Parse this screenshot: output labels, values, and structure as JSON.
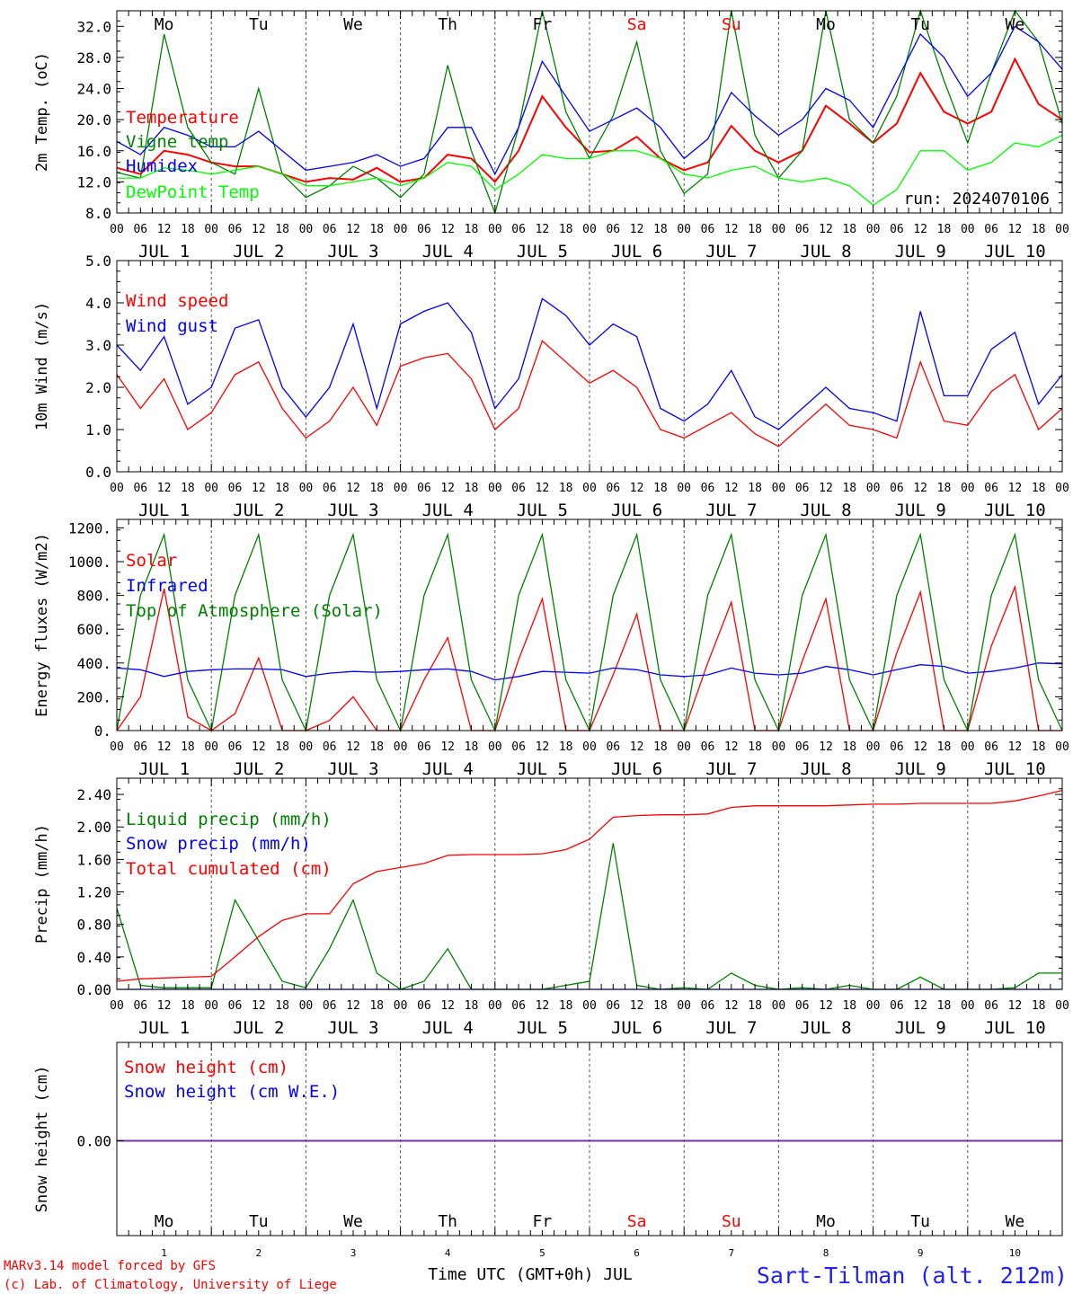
{
  "footer": {
    "credit_line1": "MARv3.14 model forced by GFS",
    "credit_line2": "(c) Lab. of Climatology, University of Liege",
    "xlabel": "Time UTC (GMT+0h) JUL",
    "station": "Sart-Tilman (alt. 212m)"
  },
  "days": {
    "weekday_labels": [
      "Mo",
      "Tu",
      "We",
      "Th",
      "Fr",
      "Sa",
      "Su",
      "Mo",
      "Tu",
      "We"
    ],
    "date_labels": [
      "JUL  1",
      "JUL  2",
      "JUL  3",
      "JUL  4",
      "JUL  5",
      "JUL  6",
      "JUL  7",
      "JUL  8",
      "JUL  9",
      "JUL 10"
    ],
    "day_numbers": [
      "1",
      "2",
      "3",
      "4",
      "5",
      "6",
      "7",
      "8",
      "9",
      "10"
    ],
    "hour_ticks": [
      "00",
      "06",
      "12",
      "18"
    ],
    "final_hour": "00",
    "weekend_color": "#ff0000",
    "weekday_color": "#000000"
  },
  "chart_data": [
    {
      "type": "line",
      "ylabel": "2m Temp. (oC)",
      "ylim": [
        8,
        34
      ],
      "ytick_labels": [
        "8.0",
        "12.0",
        "16.0",
        "20.0",
        "24.0",
        "28.0",
        "32.0"
      ],
      "annotation": "run: 2024070106",
      "x_hours": [
        0,
        6,
        12,
        18,
        24,
        30,
        36,
        42,
        48,
        54,
        60,
        66,
        72,
        78,
        84,
        90,
        96,
        102,
        108,
        114,
        120,
        126,
        132,
        138,
        144,
        150,
        156,
        162,
        168,
        174,
        180,
        186,
        192,
        198,
        204,
        210,
        216,
        222,
        228,
        234,
        240
      ],
      "series": [
        {
          "name": "Temperature",
          "color": "#ff0000",
          "values": [
            13.8,
            13.0,
            16.0,
            15.5,
            14.5,
            14.0,
            14.0,
            13.0,
            12.0,
            12.5,
            12.3,
            13.8,
            12.0,
            12.5,
            15.5,
            15.0,
            12.0,
            16.0,
            23.0,
            19.0,
            15.8,
            16.0,
            17.8,
            15.0,
            13.5,
            14.5,
            19.2,
            16.0,
            14.5,
            16.0,
            21.8,
            19.5,
            17.0,
            19.5,
            26.0,
            21.0,
            19.5,
            21.0,
            27.8,
            22.0,
            20.0
          ]
        },
        {
          "name": "Vigne temp",
          "color": "#008000",
          "values": [
            13.2,
            12.5,
            31.0,
            19.0,
            14.5,
            13.0,
            24.0,
            13.0,
            10.0,
            11.5,
            14.0,
            12.5,
            10.0,
            13.0,
            27.0,
            16.0,
            8.0,
            19.0,
            39.0,
            21.0,
            15.0,
            20.5,
            30.0,
            16.0,
            10.5,
            13.0,
            35.0,
            18.0,
            12.5,
            16.0,
            37.0,
            20.0,
            17.0,
            23.0,
            40.0,
            25.0,
            17.0,
            26.0,
            40.0,
            30.0,
            19.5
          ]
        },
        {
          "name": "Humidex",
          "color": "#0000ff",
          "values": [
            17.2,
            15.5,
            19.0,
            18.0,
            16.5,
            16.5,
            18.5,
            16.0,
            13.5,
            14.0,
            14.5,
            15.5,
            14.0,
            15.0,
            19.0,
            19.0,
            13.0,
            19.0,
            27.5,
            23.0,
            18.5,
            20.0,
            21.5,
            19.0,
            15.0,
            17.5,
            23.5,
            20.5,
            18.0,
            20.0,
            24.0,
            22.5,
            19.0,
            25.0,
            31.0,
            28.0,
            23.0,
            26.0,
            32.0,
            30.0,
            26.5
          ]
        },
        {
          "name": "DewPoint Temp",
          "color": "#00ff00",
          "values": [
            12.5,
            12.5,
            13.8,
            13.5,
            13.0,
            13.5,
            14.0,
            13.0,
            11.5,
            11.5,
            12.0,
            12.5,
            11.5,
            12.5,
            14.5,
            14.0,
            11.0,
            13.0,
            15.5,
            15.0,
            15.0,
            16.0,
            16.0,
            15.0,
            13.0,
            12.5,
            13.5,
            14.0,
            12.5,
            12.0,
            12.5,
            11.5,
            9.0,
            11.0,
            16.0,
            16.0,
            13.5,
            14.5,
            17.0,
            16.5,
            18.0
          ]
        }
      ]
    },
    {
      "type": "line",
      "ylabel": "10m Wind (m/s)",
      "ylim": [
        0,
        5
      ],
      "ytick_labels": [
        "0.0",
        "1.0",
        "2.0",
        "3.0",
        "4.0",
        "5.0"
      ],
      "x_hours": [
        0,
        6,
        12,
        18,
        24,
        30,
        36,
        42,
        48,
        54,
        60,
        66,
        72,
        78,
        84,
        90,
        96,
        102,
        108,
        114,
        120,
        126,
        132,
        138,
        144,
        150,
        156,
        162,
        168,
        174,
        180,
        186,
        192,
        198,
        204,
        210,
        216,
        222,
        228,
        234,
        240
      ],
      "series": [
        {
          "name": "Wind speed",
          "color": "#ff0000",
          "values": [
            2.3,
            1.5,
            2.2,
            1.0,
            1.4,
            2.3,
            2.6,
            1.5,
            0.8,
            1.2,
            2.0,
            1.1,
            2.5,
            2.7,
            2.8,
            2.2,
            1.0,
            1.5,
            3.1,
            2.6,
            2.1,
            2.4,
            2.0,
            1.0,
            0.8,
            1.1,
            1.4,
            0.9,
            0.6,
            1.1,
            1.6,
            1.1,
            1.0,
            0.8,
            2.6,
            1.2,
            1.1,
            1.9,
            2.3,
            1.0,
            1.5
          ]
        },
        {
          "name": "Wind gust",
          "color": "#0000ff",
          "values": [
            3.0,
            2.4,
            3.2,
            1.6,
            2.0,
            3.4,
            3.6,
            2.0,
            1.3,
            2.0,
            3.5,
            1.5,
            3.5,
            3.8,
            4.0,
            3.3,
            1.5,
            2.2,
            4.1,
            3.7,
            3.0,
            3.5,
            3.2,
            1.5,
            1.2,
            1.6,
            2.4,
            1.3,
            1.0,
            1.5,
            2.0,
            1.5,
            1.4,
            1.2,
            3.8,
            1.8,
            1.8,
            2.9,
            3.3,
            1.6,
            2.3
          ]
        }
      ]
    },
    {
      "type": "line",
      "ylabel": "Energy fluxes (W/m2)",
      "ylim": [
        0,
        1250
      ],
      "ytick_labels": [
        "0.",
        "200.",
        "400.",
        "600.",
        "800.",
        "1000.",
        "1200."
      ],
      "x_hours": [
        0,
        6,
        12,
        18,
        24,
        30,
        36,
        42,
        48,
        54,
        60,
        66,
        72,
        78,
        84,
        90,
        96,
        102,
        108,
        114,
        120,
        126,
        132,
        138,
        144,
        150,
        156,
        162,
        168,
        174,
        180,
        186,
        192,
        198,
        204,
        210,
        216,
        222,
        228,
        234,
        240
      ],
      "series": [
        {
          "name": "Solar",
          "color": "#ff0000",
          "values": [
            0,
            200,
            840,
            80,
            0,
            100,
            430,
            0,
            0,
            60,
            200,
            0,
            0,
            300,
            550,
            0,
            0,
            420,
            780,
            0,
            0,
            330,
            690,
            0,
            0,
            400,
            760,
            0,
            0,
            410,
            780,
            0,
            0,
            460,
            820,
            0,
            0,
            500,
            850,
            0,
            0
          ]
        },
        {
          "name": "Infrared",
          "color": "#0000ff",
          "values": [
            370,
            360,
            320,
            350,
            360,
            365,
            365,
            360,
            320,
            340,
            350,
            345,
            350,
            360,
            365,
            350,
            300,
            320,
            350,
            345,
            340,
            370,
            360,
            330,
            320,
            330,
            370,
            340,
            330,
            340,
            380,
            360,
            330,
            360,
            390,
            380,
            340,
            350,
            370,
            400,
            395
          ]
        },
        {
          "name": "Top of Atmosphere (Solar)",
          "color": "#008000",
          "values": [
            0,
            800,
            1160,
            300,
            0,
            800,
            1160,
            300,
            0,
            800,
            1160,
            300,
            0,
            800,
            1160,
            300,
            0,
            800,
            1160,
            300,
            0,
            800,
            1160,
            300,
            0,
            800,
            1160,
            300,
            0,
            800,
            1160,
            300,
            0,
            800,
            1160,
            300,
            0,
            800,
            1160,
            300,
            0
          ]
        }
      ]
    },
    {
      "type": "line",
      "ylabel": "Precip (mm/h)",
      "ylim": [
        0,
        2.6
      ],
      "ytick_labels": [
        "0.00",
        "0.40",
        "0.80",
        "1.20",
        "1.60",
        "2.00",
        "2.40"
      ],
      "x_hours": [
        0,
        6,
        12,
        18,
        24,
        30,
        36,
        42,
        48,
        54,
        60,
        66,
        72,
        78,
        84,
        90,
        96,
        102,
        108,
        114,
        120,
        126,
        132,
        138,
        144,
        150,
        156,
        162,
        168,
        174,
        180,
        186,
        192,
        198,
        204,
        210,
        216,
        222,
        228,
        234,
        240
      ],
      "series": [
        {
          "name": "Liquid precip (mm/h)",
          "color": "#008000",
          "values": [
            1.0,
            0.05,
            0.02,
            0.02,
            0.02,
            1.1,
            0.6,
            0.1,
            0.02,
            0.5,
            1.1,
            0.2,
            0.0,
            0.1,
            0.5,
            0.0,
            0.0,
            0.0,
            0.0,
            0.05,
            0.1,
            1.8,
            0.05,
            0.0,
            0.02,
            0.0,
            0.2,
            0.05,
            0.0,
            0.02,
            0.0,
            0.05,
            0.0,
            0.0,
            0.15,
            0.0,
            0.0,
            0.0,
            0.02,
            0.2,
            0.2
          ]
        },
        {
          "name": "Snow precip (mm/h)",
          "color": "#0000ff",
          "values": [
            0,
            0,
            0,
            0,
            0,
            0,
            0,
            0,
            0,
            0,
            0,
            0,
            0,
            0,
            0,
            0,
            0,
            0,
            0,
            0,
            0,
            0,
            0,
            0,
            0,
            0,
            0,
            0,
            0,
            0,
            0,
            0,
            0,
            0,
            0,
            0,
            0,
            0,
            0,
            0,
            0
          ]
        },
        {
          "name": "Total cumulated (cm)",
          "color": "#ff0000",
          "values": [
            0.1,
            0.13,
            0.14,
            0.15,
            0.16,
            0.4,
            0.65,
            0.85,
            0.93,
            0.93,
            1.3,
            1.45,
            1.5,
            1.55,
            1.65,
            1.66,
            1.66,
            1.66,
            1.67,
            1.72,
            1.85,
            2.12,
            2.14,
            2.15,
            2.15,
            2.16,
            2.24,
            2.26,
            2.26,
            2.26,
            2.26,
            2.27,
            2.28,
            2.28,
            2.29,
            2.29,
            2.29,
            2.29,
            2.32,
            2.38,
            2.45
          ]
        }
      ]
    },
    {
      "type": "line",
      "ylabel": "Snow height (cm)",
      "ytick_labels": [
        "0.00"
      ],
      "series": [
        {
          "name": "Snow height (cm)",
          "color": "#ff0000",
          "values": [
            0,
            0
          ]
        },
        {
          "name": "Snow height (cm W.E.)",
          "color": "#0000ff",
          "values": [
            0,
            0
          ]
        }
      ]
    }
  ]
}
